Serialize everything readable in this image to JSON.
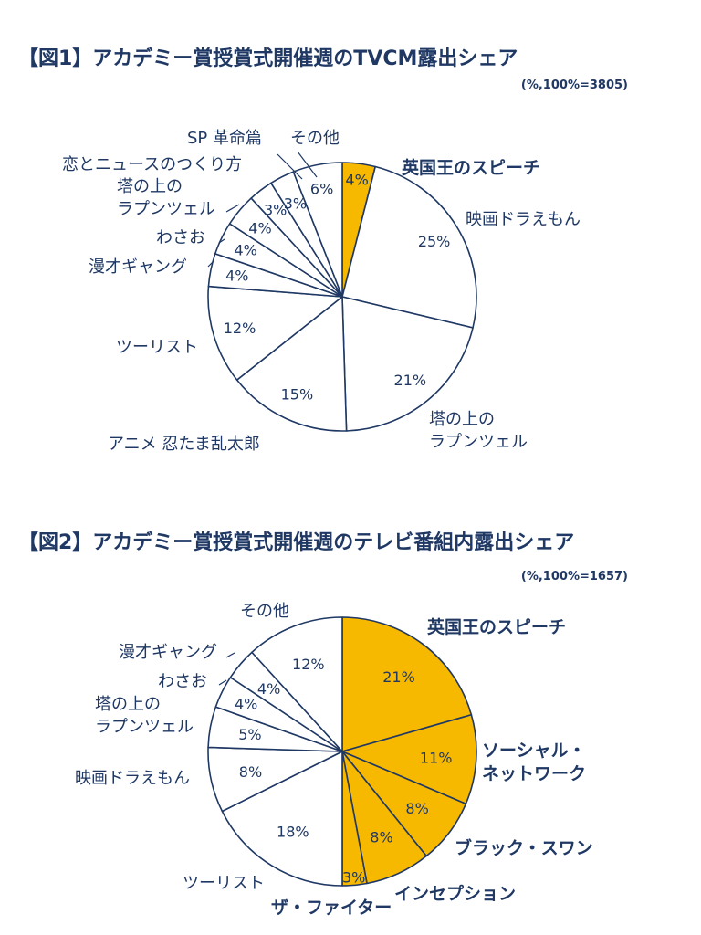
{
  "chart_data": [
    {
      "type": "pie",
      "title": "【図1】アカデミー賞授賞式開催週のTVCM露出シェア",
      "note": "(%,100%=3805)",
      "slices": [
        {
          "name": "英国王のスピーチ",
          "value": 4,
          "label": "4%",
          "highlight": true
        },
        {
          "name": "映画ドラえもん",
          "value": 25,
          "label": "25%",
          "highlight": false
        },
        {
          "name": "塔の上の\nラプンツェル",
          "value": 21,
          "label": "21%",
          "highlight": false
        },
        {
          "name": "アニメ 忍たま乱太郎",
          "value": 15,
          "label": "15%",
          "highlight": false
        },
        {
          "name": "ツーリスト",
          "value": 12,
          "label": "12%",
          "highlight": false
        },
        {
          "name": "漫才ギャング",
          "value": 4,
          "label": "4%",
          "highlight": false
        },
        {
          "name": "わさお",
          "value": 4,
          "label": "4%",
          "highlight": false
        },
        {
          "name": "塔の上の\nラプンツェル",
          "value": 4,
          "label": "4%",
          "highlight": false
        },
        {
          "name": "恋とニュースのつくり方",
          "value": 3,
          "label": "3%",
          "highlight": false
        },
        {
          "name": "SP 革命篇",
          "value": 3,
          "label": "3%",
          "highlight": false
        },
        {
          "name": "その他",
          "value": 6,
          "label": "6%",
          "highlight": false
        }
      ]
    },
    {
      "type": "pie",
      "title": "【図2】アカデミー賞授賞式開催週のテレビ番組内露出シェア",
      "note": "(%,100%=1657)",
      "slices": [
        {
          "name": "英国王のスピーチ",
          "value": 21,
          "label": "21%",
          "highlight": true
        },
        {
          "name": "ソーシャル・\nネットワーク",
          "value": 11,
          "label": "11%",
          "highlight": true
        },
        {
          "name": "ブラック・スワン",
          "value": 8,
          "label": "8%",
          "highlight": true
        },
        {
          "name": "インセプション",
          "value": 8,
          "label": "8%",
          "highlight": true
        },
        {
          "name": "ザ・ファイター",
          "value": 3,
          "label": "3%",
          "highlight": true
        },
        {
          "name": "ツーリスト",
          "value": 18,
          "label": "18%",
          "highlight": false
        },
        {
          "name": "映画ドラえもん",
          "value": 8,
          "label": "8%",
          "highlight": false
        },
        {
          "name": "塔の上の\nラプンツェル",
          "value": 5,
          "label": "5%",
          "highlight": false
        },
        {
          "name": "わさお",
          "value": 4,
          "label": "4%",
          "highlight": false
        },
        {
          "name": "漫才ギャング",
          "value": 4,
          "label": "4%",
          "highlight": false
        },
        {
          "name": "その他",
          "value": 12,
          "label": "12%",
          "highlight": false
        }
      ]
    }
  ],
  "colors": {
    "highlight_fill": "#f7b800",
    "normal_fill": "#ffffff",
    "stroke": "#1f3864",
    "text": "#1f3864"
  }
}
